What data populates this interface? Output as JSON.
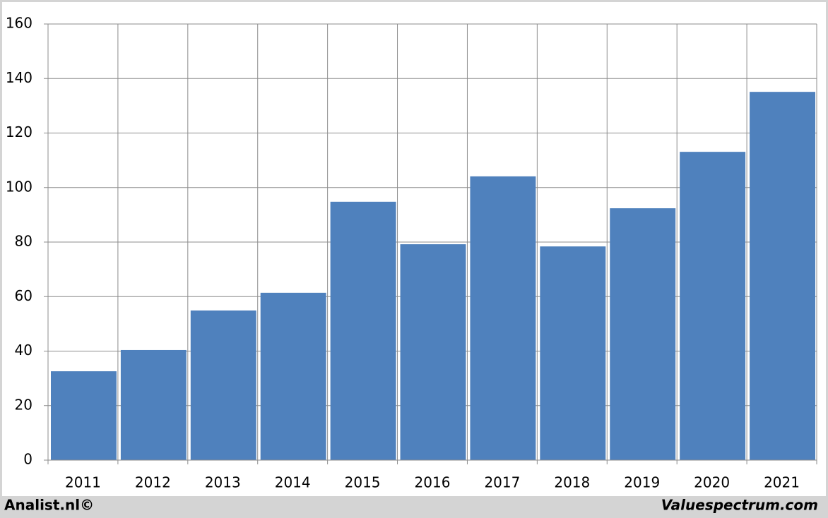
{
  "chart_data": {
    "type": "bar",
    "categories": [
      "2011",
      "2012",
      "2013",
      "2014",
      "2015",
      "2016",
      "2017",
      "2018",
      "2019",
      "2020",
      "2021"
    ],
    "values": [
      32.6,
      40.4,
      54.9,
      61.4,
      94.8,
      79.2,
      104.1,
      78.4,
      92.4,
      113.1,
      135.1
    ],
    "color": "#4f81bd",
    "ylim": [
      0,
      160
    ],
    "yticks": [
      0,
      20,
      40,
      60,
      80,
      100,
      120,
      140,
      160
    ],
    "grid": true,
    "footer_left": "Analist.nl©",
    "footer_right": "Valuespectrum.com"
  }
}
